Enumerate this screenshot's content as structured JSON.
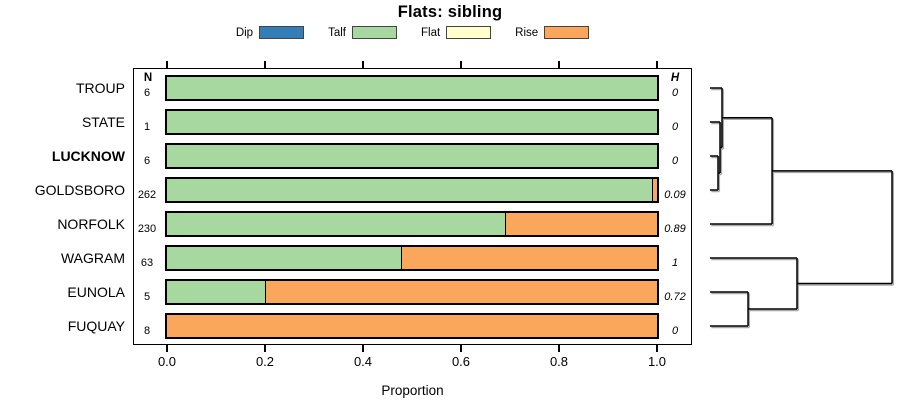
{
  "title": "Flats: sibling",
  "legend": {
    "items": [
      {
        "label": "Dip",
        "color": "#337EB8"
      },
      {
        "label": "Talf",
        "color": "#A6D89F"
      },
      {
        "label": "Flat",
        "color": "#FFFFCC"
      },
      {
        "label": "Rise",
        "color": "#FAA65B"
      }
    ]
  },
  "table": {
    "n_header": "N",
    "h_header": "H"
  },
  "axis": {
    "label": "Proportion",
    "tick_labels": [
      "0.0",
      "0.2",
      "0.4",
      "0.6",
      "0.8",
      "1.0"
    ]
  },
  "chart_data": {
    "type": "bar",
    "orientation": "horizontal_stacked",
    "title": "Flats: sibling",
    "xlabel": "Proportion",
    "xlim": [
      0,
      1
    ],
    "xticks": [
      0,
      0.2,
      0.4,
      0.6,
      0.8,
      1
    ],
    "grid": false,
    "legend_position": "top",
    "categories": [
      "TROUP",
      "STATE",
      "LUCKNOW",
      "GOLDSBORO",
      "NORFOLK",
      "WAGRAM",
      "EUNOLA",
      "FUQUAY"
    ],
    "bold_categories": [
      "LUCKNOW"
    ],
    "N": [
      6,
      1,
      6,
      262,
      230,
      63,
      5,
      8
    ],
    "H": [
      "0",
      "0",
      "0",
      "0.09",
      "0.89",
      "1",
      "0.72",
      "0"
    ],
    "series": [
      {
        "name": "Dip",
        "color": "#337EB8",
        "values": [
          0,
          0,
          0,
          0,
          0,
          0,
          0,
          0
        ]
      },
      {
        "name": "Talf",
        "color": "#A6D89F",
        "values": [
          1,
          1,
          1,
          0.989,
          0.69,
          0.477,
          0.2,
          0
        ]
      },
      {
        "name": "Flat",
        "color": "#FFFFCC",
        "values": [
          0,
          0,
          0,
          0,
          0,
          0,
          0,
          0
        ]
      },
      {
        "name": "Rise",
        "color": "#FAA65B",
        "values": [
          0,
          0,
          0,
          0.011,
          0.31,
          0.523,
          0.8,
          1
        ]
      }
    ],
    "dendrogram": {
      "side": "right",
      "leaves": [
        "TROUP",
        "STATE",
        "LUCKNOW",
        "GOLDSBORO",
        "NORFOLK",
        "WAGRAM",
        "EUNOLA",
        "FUQUAY"
      ],
      "merges": [
        {
          "id": "m1",
          "children": [
            "LUCKNOW",
            "GOLDSBORO"
          ],
          "height": 0.044
        },
        {
          "id": "m2",
          "children": [
            "STATE",
            "m1"
          ],
          "height": 0.055
        },
        {
          "id": "m3",
          "children": [
            "TROUP",
            "m2"
          ],
          "height": 0.066
        },
        {
          "id": "m4",
          "children": [
            "m3",
            "NORFOLK"
          ],
          "height": 0.341
        },
        {
          "id": "m5",
          "children": [
            "EUNOLA",
            "FUQUAY"
          ],
          "height": 0.209
        },
        {
          "id": "m6",
          "children": [
            "WAGRAM",
            "m5"
          ],
          "height": 0.478
        },
        {
          "id": "m7",
          "children": [
            "m4",
            "m6"
          ],
          "height": 1
        }
      ]
    }
  }
}
